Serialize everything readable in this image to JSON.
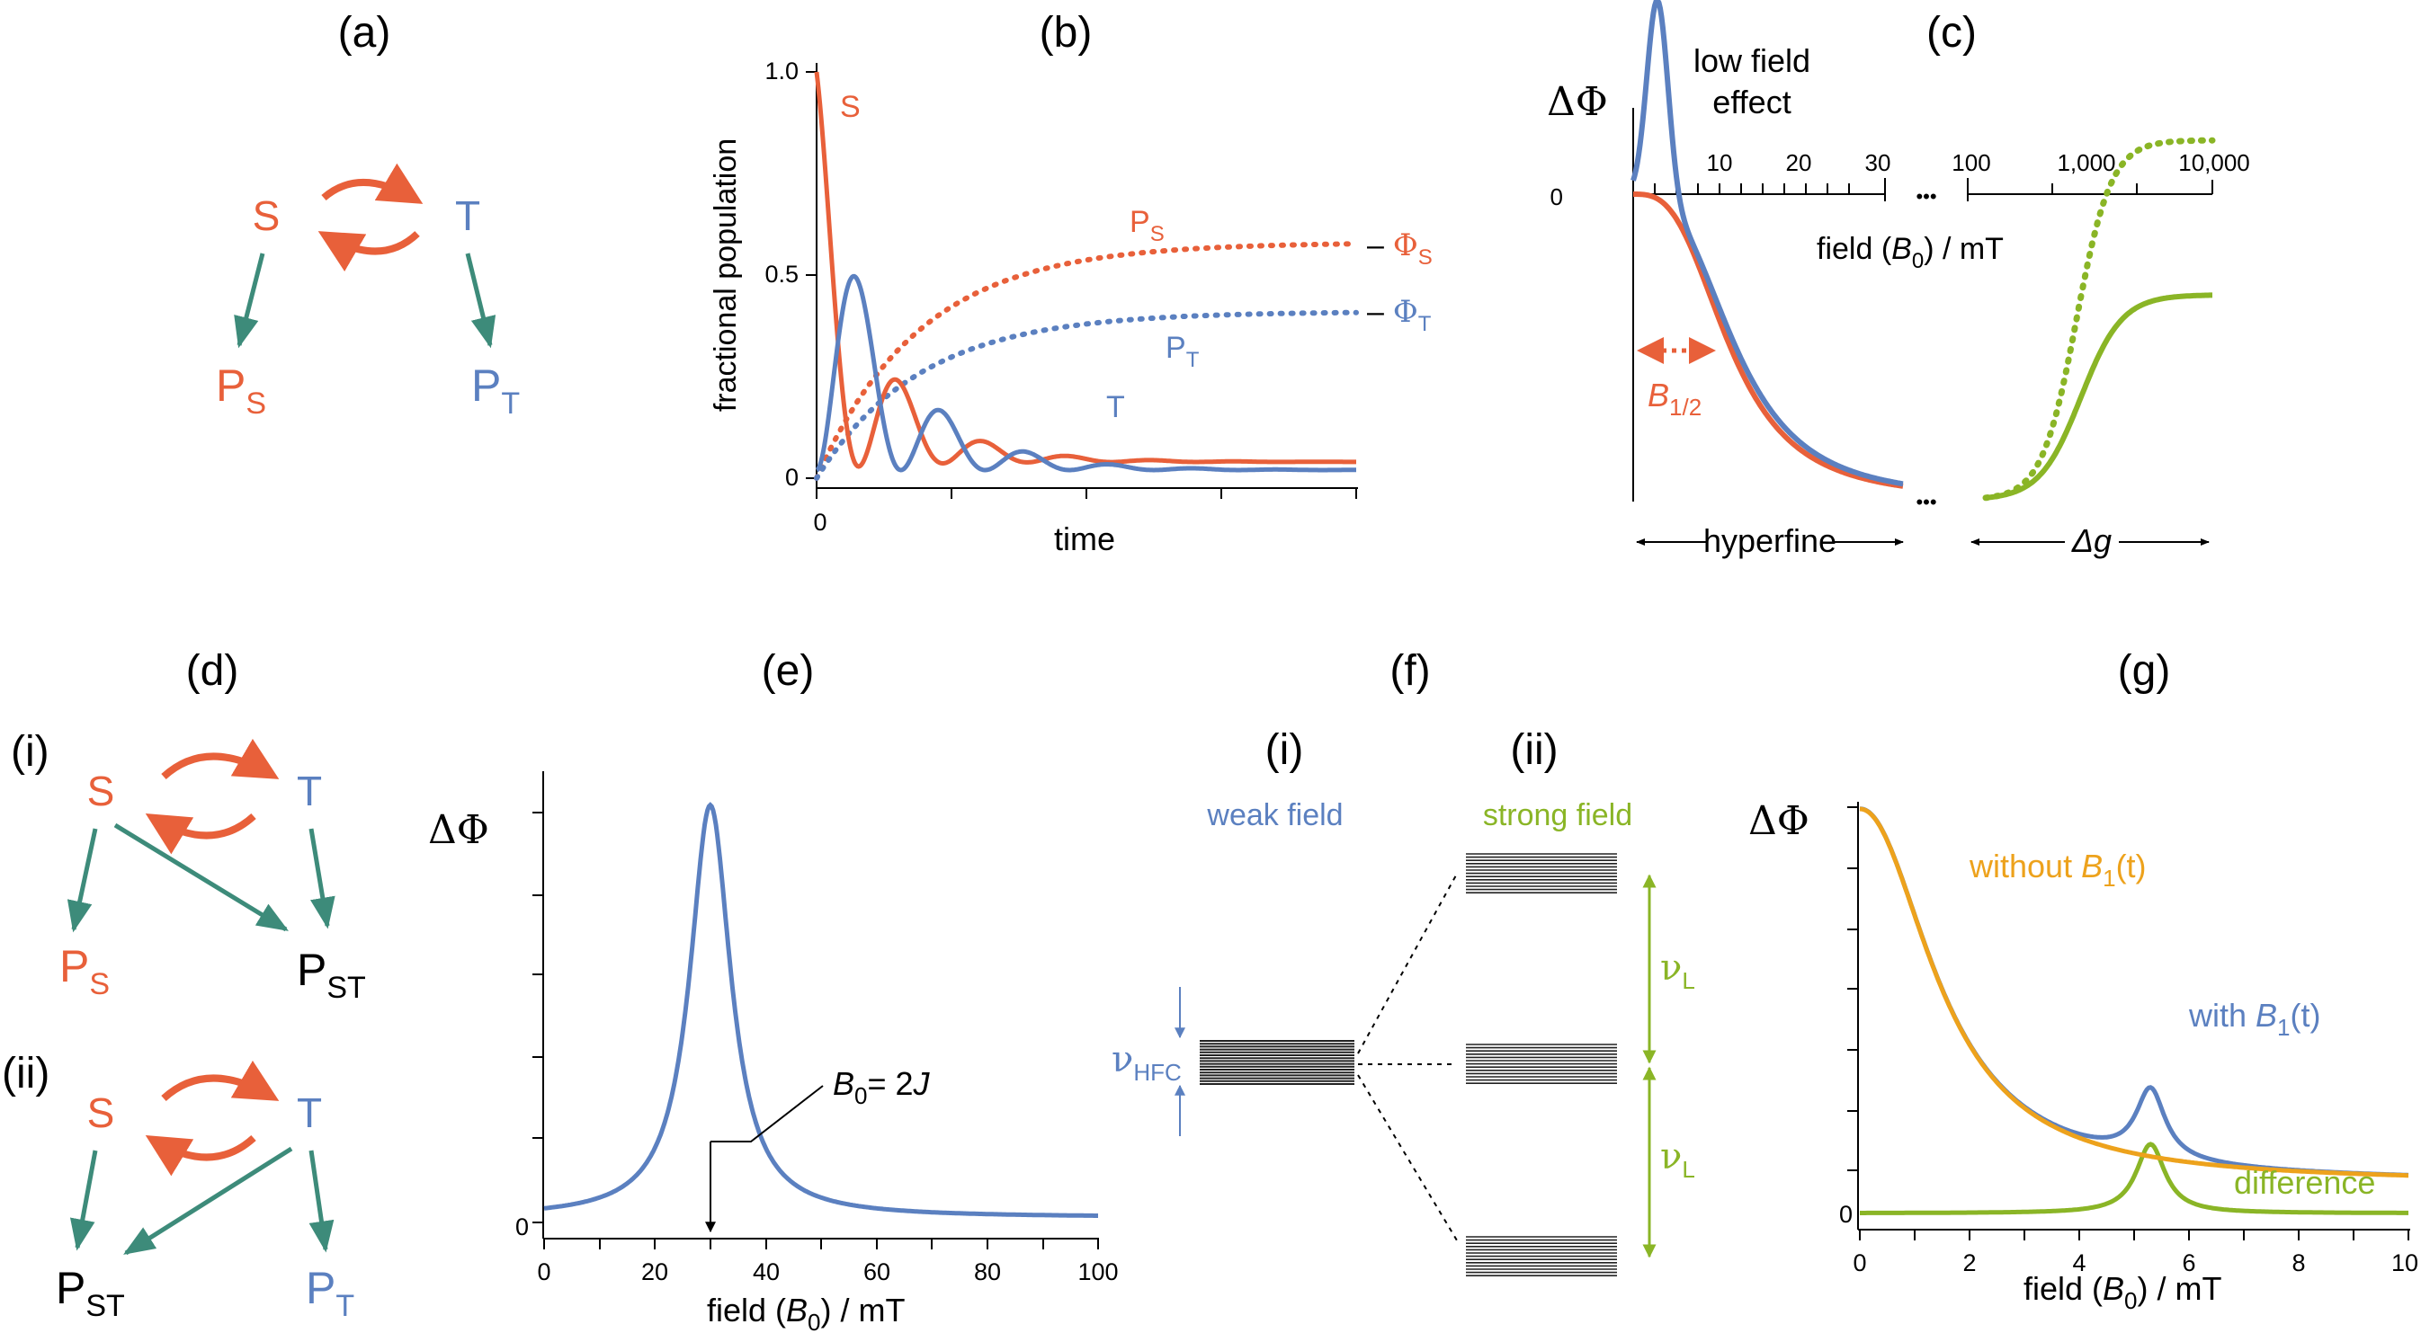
{
  "colors": {
    "orange": "#e8603a",
    "blue": "#5b80c0",
    "green": "#3d8b7a",
    "lime": "#8ab526",
    "gold": "#eda21c",
    "black": "#000000"
  },
  "panels": {
    "a": {
      "label": "(a)",
      "S": "S",
      "T": "T",
      "P": "P",
      "sub_S": "S",
      "sub_T": "T"
    },
    "b": {
      "label": "(b)",
      "ylabel": "fractional population",
      "xlabel": "time",
      "yticks": [
        "1.0",
        "0.5",
        "0"
      ],
      "xtick0": "0",
      "S": "S",
      "T": "T",
      "P": "P",
      "sub_S": "S",
      "sub_T": "T",
      "phi": "Φ",
      "dash": "–"
    },
    "c": {
      "label": "(c)",
      "ylabel": "ΔΦ",
      "zero": "0",
      "low_field_1": "low field",
      "low_field_2": "effect",
      "ticks_low": [
        "10",
        "20",
        "30"
      ],
      "ticks_high": [
        "100",
        "1,000",
        "10,000"
      ],
      "field_1": "field (",
      "field_B": "B",
      "field_sub": "0",
      "field_2": ") / mT",
      "ellipsis": "•••",
      "B": "B",
      "half": "1/2",
      "hyperfine": "hyperfine",
      "delta_g": "Δg"
    },
    "d": {
      "label": "(d)",
      "i": "(i)",
      "ii": "(ii)",
      "S": "S",
      "T": "T",
      "P": "P",
      "sub_S": "S",
      "sub_T": "T",
      "sub_ST": "ST"
    },
    "e": {
      "label": "(e)",
      "ylabel": "ΔΦ",
      "y0": "0",
      "xticks": [
        "0",
        "20",
        "40",
        "60",
        "80",
        "100"
      ],
      "xlabel_1": "field (",
      "xlabel_B": "B",
      "xlabel_sub": "0",
      "xlabel_2": ") / mT",
      "ann_B": "B",
      "ann_sub": "0",
      "ann_eq": "= 2",
      "ann_J": "J"
    },
    "f": {
      "label": "(f)",
      "i": "(i)",
      "ii": "(ii)",
      "weak": "weak field",
      "strong": "strong field",
      "nu": "ν",
      "hfc": "HFC",
      "L": "L"
    },
    "g": {
      "label": "(g)",
      "ylabel": "ΔΦ",
      "y0": "0",
      "xticks": [
        "0",
        "2",
        "4",
        "6",
        "8",
        "10"
      ],
      "xlabel_1": "field (",
      "xlabel_B": "B",
      "xlabel_sub": "0",
      "xlabel_2": ") / mT",
      "without": "without ",
      "with": "with ",
      "B1": "B",
      "sub1": "1",
      "t": "(t)",
      "difference": "difference"
    }
  }
}
